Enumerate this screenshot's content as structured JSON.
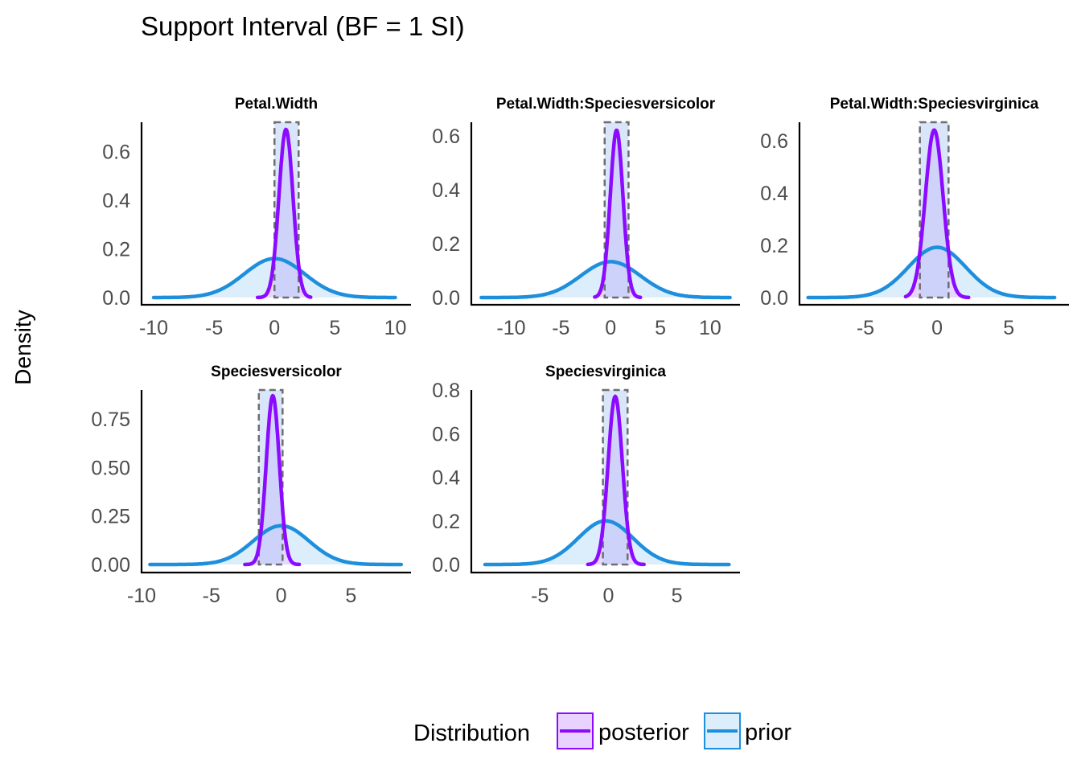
{
  "colors": {
    "posterior": "#8b0aff",
    "posterior_fill": "#e8d2ff",
    "prior": "#1e8fdc",
    "prior_fill": "#dceefb",
    "interval_fill": "#b4cdf5",
    "interval_border": "#6e6e6e",
    "axis": "#000000",
    "tick_text": "#4d4d4d"
  },
  "chart_data": {
    "type": "area",
    "title": "Support Interval (BF = 1 SI)",
    "ylabel": "Density",
    "xlabel": "",
    "grid": false,
    "legend": {
      "position": "bottom",
      "title": "Distribution",
      "items": [
        {
          "key": "posterior",
          "label": "posterior",
          "color": "#8b0aff",
          "fill": "#e8d2ff"
        },
        {
          "key": "prior",
          "label": "prior",
          "color": "#1e8fdc",
          "fill": "#dceefb"
        }
      ]
    },
    "facets": [
      {
        "name": "Petal.Width",
        "xlim": [
          -11,
          11.3
        ],
        "ylim": [
          0,
          0.72
        ],
        "xticks": [
          -10,
          -5,
          0,
          5,
          10
        ],
        "xtick_labels": [
          "-10",
          "-5",
          "0",
          "5",
          "10"
        ],
        "yticks": [
          0,
          0.2,
          0.4,
          0.6
        ],
        "ytick_labels": [
          "0.0",
          "0.2",
          "0.4",
          "0.6"
        ],
        "support_interval": [
          0,
          2
        ],
        "prior": {
          "mean": 0,
          "sd": 2.5,
          "peak": 0.16,
          "range": [
            -10,
            10
          ]
        },
        "posterior": {
          "mean": 0.95,
          "sd": 0.58,
          "peak": 0.69,
          "range": [
            -1.4,
            3.0
          ]
        }
      },
      {
        "name": "Petal.Width:Speciesversicolor",
        "xlim": [
          -14,
          13
        ],
        "ylim": [
          0,
          0.65
        ],
        "xticks": [
          -10,
          -5,
          0,
          5,
          10
        ],
        "xtick_labels": [
          "-10",
          "-5",
          "0",
          "5",
          "10"
        ],
        "yticks": [
          0,
          0.2,
          0.4,
          0.6
        ],
        "ytick_labels": [
          "0.0",
          "0.2",
          "0.4",
          "0.6"
        ],
        "support_interval": [
          -0.6,
          1.8
        ],
        "prior": {
          "mean": 0,
          "sd": 3.0,
          "peak": 0.133,
          "range": [
            -13,
            12
          ]
        },
        "posterior": {
          "mean": 0.6,
          "sd": 0.64,
          "peak": 0.62,
          "range": [
            -1.6,
            3.0
          ]
        }
      },
      {
        "name": "Petal.Width:Speciesvirginica",
        "xlim": [
          -9.6,
          9.2
        ],
        "ylim": [
          0,
          0.67
        ],
        "xticks": [
          -5,
          0,
          5
        ],
        "xtick_labels": [
          "-5",
          "0",
          "5"
        ],
        "yticks": [
          0,
          0.2,
          0.4,
          0.6
        ],
        "ytick_labels": [
          "0.0",
          "0.2",
          "0.4",
          "0.6"
        ],
        "support_interval": [
          -1.2,
          0.8
        ],
        "prior": {
          "mean": 0,
          "sd": 2.0,
          "peak": 0.192,
          "range": [
            -9,
            8.2
          ]
        },
        "posterior": {
          "mean": -0.2,
          "sd": 0.62,
          "peak": 0.64,
          "range": [
            -2.2,
            2.2
          ]
        }
      },
      {
        "name": "Speciesversicolor",
        "xlim": [
          -10,
          9.3
        ],
        "ylim": [
          0,
          0.9
        ],
        "xticks": [
          -10,
          -5,
          0,
          5
        ],
        "xtick_labels": [
          "-10",
          "-5",
          "0",
          "5"
        ],
        "yticks": [
          0,
          0.25,
          0.5,
          0.75
        ],
        "ytick_labels": [
          "0.00",
          "0.25",
          "0.50",
          "0.75"
        ],
        "support_interval": [
          -1.6,
          0.1
        ],
        "prior": {
          "mean": 0,
          "sd": 2.0,
          "peak": 0.2,
          "range": [
            -9.4,
            8.6
          ]
        },
        "posterior": {
          "mean": -0.6,
          "sd": 0.47,
          "peak": 0.87,
          "range": [
            -2.6,
            1.3
          ]
        }
      },
      {
        "name": "Speciesvirginica",
        "xlim": [
          -10,
          9.6
        ],
        "ylim": [
          0,
          0.8
        ],
        "xticks": [
          -5,
          0,
          5
        ],
        "xtick_labels": [
          "-5",
          "0",
          "5"
        ],
        "yticks": [
          0,
          0.2,
          0.4,
          0.6,
          0.8
        ],
        "ytick_labels": [
          "0.0",
          "0.2",
          "0.4",
          "0.6",
          "0.8"
        ],
        "support_interval": [
          -0.4,
          1.4
        ],
        "prior": {
          "mean": -0.2,
          "sd": 2.0,
          "peak": 0.2,
          "range": [
            -9,
            8.8
          ]
        },
        "posterior": {
          "mean": 0.5,
          "sd": 0.52,
          "peak": 0.77,
          "range": [
            -1.5,
            2.6
          ]
        }
      }
    ]
  }
}
